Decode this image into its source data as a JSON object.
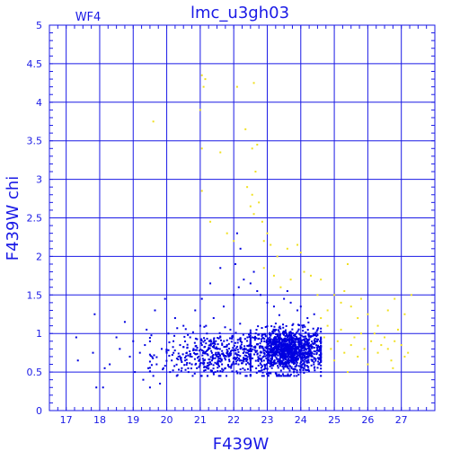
{
  "chart_data": {
    "type": "scatter",
    "title": "lmc_u3gh03",
    "panel_label": "WF4",
    "xlabel": "F439W",
    "ylabel": "F439W  chi",
    "xlim": [
      16.5,
      28
    ],
    "ylim": [
      0,
      5
    ],
    "grid": true,
    "x_ticks": [
      "17",
      "18",
      "19",
      "20",
      "21",
      "22",
      "23",
      "24",
      "25",
      "26",
      "27"
    ],
    "y_ticks": [
      "0",
      "0.5",
      "1",
      "1.5",
      "2",
      "2.5",
      "3",
      "3.5",
      "4",
      "4.5",
      "5"
    ],
    "colors": {
      "axis": "#1a1ae6",
      "blue_points": "#0000e0",
      "yellow_points": "#f0e020"
    },
    "series": [
      {
        "color": "blue",
        "points": [
          [
            17.3,
            0.95
          ],
          [
            17.35,
            0.65
          ],
          [
            17.8,
            0.75
          ],
          [
            17.85,
            1.25
          ],
          [
            17.9,
            0.3
          ],
          [
            18.1,
            0.3
          ],
          [
            18.15,
            0.55
          ],
          [
            18.3,
            0.6
          ],
          [
            18.5,
            0.95
          ],
          [
            18.6,
            0.8
          ],
          [
            18.75,
            1.15
          ],
          [
            18.9,
            0.7
          ],
          [
            19.0,
            0.9
          ],
          [
            19.05,
            0.5
          ],
          [
            19.2,
            0.75
          ],
          [
            19.3,
            0.4
          ],
          [
            19.35,
            0.85
          ],
          [
            19.4,
            1.05
          ],
          [
            19.45,
            0.55
          ],
          [
            19.5,
            0.3
          ],
          [
            19.6,
            0.45
          ],
          [
            19.65,
            1.3
          ],
          [
            19.7,
            0.6
          ],
          [
            19.8,
            0.35
          ],
          [
            19.85,
            0.8
          ],
          [
            19.9,
            0.55
          ],
          [
            19.95,
            1.45
          ],
          [
            20.0,
            0.75
          ],
          [
            20.05,
            1.0
          ],
          [
            20.1,
            0.5
          ],
          [
            20.15,
            0.65
          ],
          [
            20.2,
            0.9
          ],
          [
            20.25,
            1.2
          ],
          [
            20.3,
            0.45
          ],
          [
            20.35,
            0.7
          ],
          [
            20.4,
            0.85
          ],
          [
            20.45,
            0.55
          ],
          [
            20.5,
            1.1
          ],
          [
            20.55,
            0.65
          ],
          [
            20.6,
            0.75
          ],
          [
            20.65,
            0.5
          ],
          [
            20.7,
            0.95
          ],
          [
            20.75,
            0.6
          ],
          [
            20.8,
            0.8
          ],
          [
            20.85,
            1.3
          ],
          [
            20.9,
            0.55
          ],
          [
            20.95,
            0.7
          ],
          [
            21.0,
            1.1
          ],
          [
            21.02,
            0.45
          ],
          [
            21.05,
            0.85
          ],
          [
            21.1,
            0.6
          ],
          [
            21.15,
            0.75
          ],
          [
            21.2,
            1.0
          ],
          [
            21.25,
            0.55
          ],
          [
            21.3,
            0.9
          ],
          [
            21.35,
            0.65
          ],
          [
            21.4,
            1.2
          ],
          [
            21.45,
            0.5
          ],
          [
            21.5,
            0.8
          ],
          [
            21.55,
            0.7
          ],
          [
            21.6,
            0.95
          ],
          [
            21.65,
            0.6
          ],
          [
            21.7,
            1.35
          ],
          [
            21.75,
            0.55
          ],
          [
            21.8,
            0.85
          ],
          [
            21.85,
            0.7
          ],
          [
            21.9,
            1.05
          ],
          [
            21.95,
            0.6
          ],
          [
            22.0,
            1.5
          ],
          [
            22.05,
            1.9
          ],
          [
            22.1,
            2.3
          ],
          [
            22.15,
            1.6
          ],
          [
            21.3,
            1.65
          ],
          [
            21.6,
            1.85
          ],
          [
            21.05,
            1.45
          ],
          [
            22.2,
            2.1
          ],
          [
            22.3,
            1.7
          ],
          [
            22.5,
            1.65
          ],
          [
            22.6,
            1.8
          ],
          [
            22.7,
            1.55
          ],
          [
            22.8,
            1.5
          ],
          [
            23.0,
            1.4
          ],
          [
            23.2,
            1.35
          ],
          [
            23.5,
            1.45
          ],
          [
            23.6,
            1.55
          ],
          [
            23.7,
            1.4
          ],
          [
            23.9,
            1.3
          ],
          [
            24.0,
            1.35
          ],
          [
            24.2,
            1.2
          ],
          [
            24.4,
            1.25
          ],
          [
            24.5,
            1.05
          ]
        ],
        "clusters": [
          {
            "n": 1250,
            "x_mean": 23.6,
            "x_sd": 0.55,
            "x_range": [
              22.2,
              24.6
            ],
            "y_mean": 0.78,
            "y_sd": 0.14,
            "y_range": [
              0.45,
              1.35
            ]
          },
          {
            "n": 420,
            "x_mean": 21.5,
            "x_sd": 0.8,
            "x_range": [
              19.5,
              22.5
            ],
            "y_mean": 0.72,
            "y_sd": 0.14,
            "y_range": [
              0.45,
              1.2
            ]
          }
        ]
      },
      {
        "color": "yellow",
        "points": [
          [
            19.6,
            3.75
          ],
          [
            21.0,
            3.9
          ],
          [
            21.05,
            4.35
          ],
          [
            21.1,
            4.2
          ],
          [
            21.15,
            4.3
          ],
          [
            21.05,
            3.4
          ],
          [
            21.3,
            2.45
          ],
          [
            21.6,
            3.35
          ],
          [
            21.05,
            2.85
          ],
          [
            22.1,
            4.2
          ],
          [
            22.6,
            4.25
          ],
          [
            22.35,
            3.65
          ],
          [
            22.55,
            3.4
          ],
          [
            22.7,
            3.45
          ],
          [
            22.65,
            3.1
          ],
          [
            22.4,
            2.9
          ],
          [
            22.55,
            2.8
          ],
          [
            22.5,
            2.65
          ],
          [
            22.6,
            2.55
          ],
          [
            22.85,
            2.45
          ],
          [
            22.75,
            2.7
          ],
          [
            21.8,
            2.3
          ],
          [
            22.0,
            2.2
          ],
          [
            22.9,
            2.2
          ],
          [
            23.0,
            2.3
          ],
          [
            23.1,
            2.15
          ],
          [
            23.3,
            2.0
          ],
          [
            23.6,
            2.1
          ],
          [
            23.9,
            2.15
          ],
          [
            24.0,
            2.05
          ],
          [
            24.1,
            1.8
          ],
          [
            24.3,
            1.75
          ],
          [
            22.9,
            1.85
          ],
          [
            23.2,
            1.75
          ],
          [
            23.4,
            1.6
          ],
          [
            23.7,
            1.7
          ],
          [
            24.5,
            1.5
          ],
          [
            24.6,
            1.7
          ],
          [
            25.4,
            1.9
          ],
          [
            25.3,
            1.55
          ],
          [
            25.5,
            1.35
          ],
          [
            25.7,
            1.2
          ],
          [
            25.8,
            1.45
          ],
          [
            26.0,
            1.25
          ],
          [
            26.3,
            1.1
          ],
          [
            26.6,
            1.3
          ],
          [
            26.8,
            1.45
          ],
          [
            27.3,
            1.5
          ],
          [
            27.1,
            1.25
          ],
          [
            27.2,
            0.75
          ],
          [
            24.7,
            0.95
          ],
          [
            24.8,
            1.1
          ],
          [
            24.9,
            0.8
          ],
          [
            25.0,
            0.65
          ],
          [
            25.1,
            0.9
          ],
          [
            25.2,
            1.05
          ],
          [
            25.3,
            0.75
          ],
          [
            25.4,
            0.5
          ],
          [
            25.5,
            0.85
          ],
          [
            25.6,
            0.95
          ],
          [
            25.7,
            0.7
          ],
          [
            25.8,
            1.0
          ],
          [
            25.9,
            0.8
          ],
          [
            26.0,
            0.6
          ],
          [
            26.1,
            0.9
          ],
          [
            26.2,
            1.0
          ],
          [
            26.3,
            0.75
          ],
          [
            26.4,
            0.85
          ],
          [
            26.5,
            0.95
          ],
          [
            26.6,
            0.8
          ],
          [
            26.7,
            0.65
          ],
          [
            26.8,
            0.9
          ],
          [
            26.9,
            1.05
          ],
          [
            27.0,
            0.85
          ],
          [
            27.1,
            0.7
          ],
          [
            26.75,
            0.55
          ],
          [
            24.8,
            1.3
          ],
          [
            25.2,
            1.4
          ],
          [
            24.6,
            1.2
          ],
          [
            25.0,
            1.5
          ]
        ]
      }
    ]
  }
}
